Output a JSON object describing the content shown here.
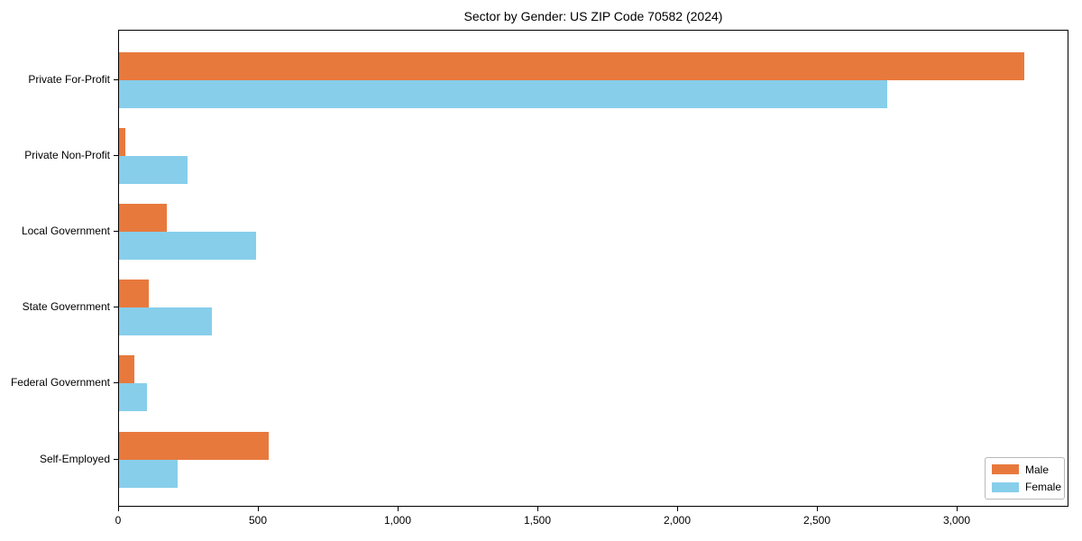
{
  "chart_data": {
    "type": "bar",
    "orientation": "horizontal",
    "title": "Sector by Gender: US ZIP Code 70582 (2024)",
    "categories": [
      "Private For-Profit",
      "Private Non-Profit",
      "Local Government",
      "State Government",
      "Federal Government",
      "Self-Employed"
    ],
    "series": [
      {
        "name": "Male",
        "color": "#E8793D",
        "values": [
          3240,
          22,
          172,
          105,
          56,
          535
        ]
      },
      {
        "name": "Female",
        "color": "#87CEEB",
        "values": [
          2748,
          245,
          490,
          333,
          101,
          210
        ]
      }
    ],
    "xlabel": "",
    "ylabel": "",
    "xlim": [
      0,
      3400
    ],
    "xticks": {
      "values": [
        0,
        500,
        1000,
        1500,
        2000,
        2500,
        3000
      ],
      "labels": [
        "0",
        "500",
        "1,000",
        "1,500",
        "2,000",
        "2,500",
        "3,000"
      ]
    },
    "grid": false,
    "legend": {
      "position": "lower right",
      "entries": [
        "Male",
        "Female"
      ]
    }
  }
}
